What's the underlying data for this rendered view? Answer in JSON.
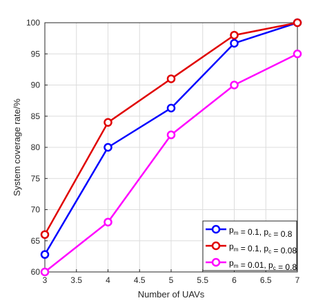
{
  "chart_data": {
    "type": "line",
    "title": "",
    "xlabel": "Number of UAVs",
    "ylabel": "System coverage rate/%",
    "xlim": [
      3,
      7
    ],
    "ylim": [
      60,
      100
    ],
    "x_ticks": [
      "3",
      "3.5",
      "4",
      "4.5",
      "5",
      "5.5",
      "6",
      "6.5",
      "7"
    ],
    "y_ticks": [
      "60",
      "65",
      "70",
      "75",
      "80",
      "85",
      "90",
      "95",
      "100"
    ],
    "grid": true,
    "legend_position": "bottom-right",
    "x": [
      3,
      4,
      5,
      6,
      7
    ],
    "series": [
      {
        "legend_main": "p",
        "legend_sub1": "m",
        "legend_mid": " = 0.1, p",
        "legend_sub2": "c",
        "legend_tail": " = 0.8",
        "color": "#0000ff",
        "values": [
          62.8,
          80,
          86.3,
          96.7,
          100
        ]
      },
      {
        "legend_main": "p",
        "legend_sub1": "m",
        "legend_mid": " = 0.1, p",
        "legend_sub2": "c",
        "legend_tail": " = 0.08",
        "color": "#e00000",
        "values": [
          66,
          84,
          91,
          98,
          100
        ]
      },
      {
        "legend_main": "p",
        "legend_sub1": "m",
        "legend_mid": " = 0.01, p",
        "legend_sub2": "c",
        "legend_tail": " = 0.8",
        "color": "#ff00ff",
        "values": [
          60,
          68,
          82,
          90,
          95
        ]
      }
    ]
  }
}
